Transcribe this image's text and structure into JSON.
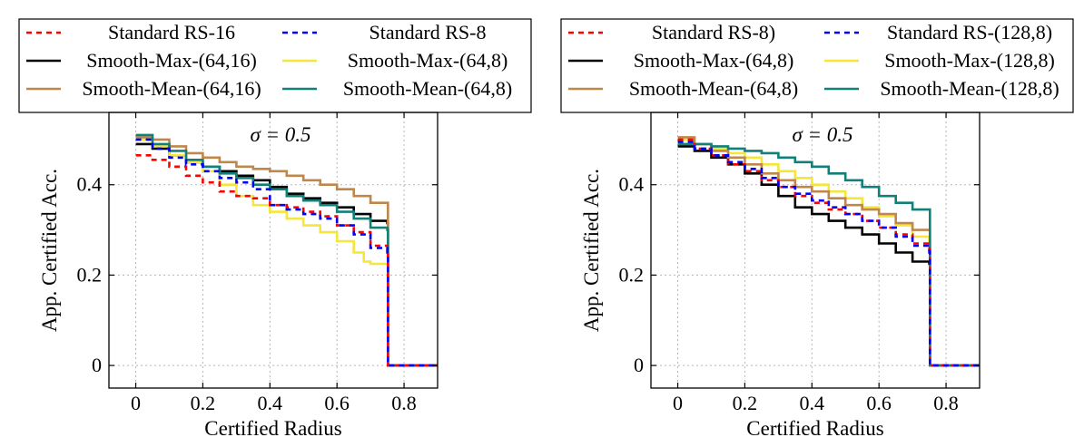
{
  "chart_data": [
    {
      "type": "line",
      "title": "",
      "annotation": "σ = 0.5",
      "xlabel": "Certified Radius",
      "ylabel": "App. Certified Acc.",
      "xlim": [
        -0.08,
        0.9
      ],
      "ylim": [
        -0.05,
        0.56
      ],
      "xticks": [
        0,
        0.2,
        0.4,
        0.6,
        0.8
      ],
      "xtick_labels": [
        "0",
        "0.2",
        "0.4",
        "0.6",
        "0.8"
      ],
      "yticks": [
        0,
        0.2,
        0.4
      ],
      "ytick_labels": [
        "0",
        "0.2",
        "0.4"
      ],
      "grid": true,
      "legend_position": "top",
      "series": [
        {
          "name": "Standard RS-16",
          "color": "#ff0000",
          "dash": "dashed",
          "x": [
            0,
            0.05,
            0.1,
            0.15,
            0.2,
            0.25,
            0.3,
            0.35,
            0.4,
            0.45,
            0.5,
            0.55,
            0.6,
            0.65,
            0.7,
            0.75,
            0.752,
            0.9
          ],
          "y": [
            0.465,
            0.455,
            0.44,
            0.42,
            0.405,
            0.385,
            0.375,
            0.37,
            0.355,
            0.35,
            0.34,
            0.33,
            0.31,
            0.295,
            0.265,
            0.255,
            0.0,
            0.0
          ]
        },
        {
          "name": "Standard RS-8",
          "color": "#0000ff",
          "dash": "dashed",
          "x": [
            0,
            0.05,
            0.1,
            0.15,
            0.2,
            0.25,
            0.3,
            0.35,
            0.4,
            0.45,
            0.5,
            0.55,
            0.6,
            0.65,
            0.7,
            0.75,
            0.752,
            0.9
          ],
          "y": [
            0.5,
            0.48,
            0.46,
            0.445,
            0.43,
            0.415,
            0.405,
            0.39,
            0.355,
            0.345,
            0.335,
            0.325,
            0.31,
            0.29,
            0.26,
            0.25,
            0.0,
            0.0
          ]
        },
        {
          "name": "Smooth-Max-(64,16)",
          "color": "#000000",
          "dash": "solid",
          "x": [
            0,
            0.05,
            0.1,
            0.15,
            0.2,
            0.25,
            0.3,
            0.35,
            0.4,
            0.45,
            0.5,
            0.55,
            0.6,
            0.65,
            0.7,
            0.75,
            0.752,
            0.9
          ],
          "y": [
            0.49,
            0.48,
            0.465,
            0.45,
            0.44,
            0.43,
            0.42,
            0.41,
            0.395,
            0.38,
            0.37,
            0.36,
            0.35,
            0.335,
            0.32,
            0.315,
            0.0,
            0.0
          ]
        },
        {
          "name": "Smooth-Max-(64,8)",
          "color": "#f5e63c",
          "dash": "solid",
          "x": [
            0,
            0.05,
            0.1,
            0.15,
            0.2,
            0.25,
            0.3,
            0.35,
            0.4,
            0.45,
            0.5,
            0.55,
            0.6,
            0.65,
            0.68,
            0.7,
            0.75,
            0.752,
            0.9
          ],
          "y": [
            0.5,
            0.485,
            0.465,
            0.45,
            0.43,
            0.4,
            0.375,
            0.355,
            0.34,
            0.325,
            0.31,
            0.295,
            0.275,
            0.25,
            0.23,
            0.225,
            0.225,
            0.0,
            0.0
          ]
        },
        {
          "name": "Smooth-Mean-(64,16)",
          "color": "#c0874a",
          "dash": "solid",
          "x": [
            0,
            0.05,
            0.1,
            0.15,
            0.2,
            0.25,
            0.3,
            0.35,
            0.4,
            0.45,
            0.5,
            0.55,
            0.6,
            0.65,
            0.7,
            0.75,
            0.752,
            0.9
          ],
          "y": [
            0.505,
            0.5,
            0.485,
            0.47,
            0.46,
            0.45,
            0.44,
            0.435,
            0.43,
            0.42,
            0.41,
            0.4,
            0.39,
            0.375,
            0.36,
            0.36,
            0.0,
            0.0
          ]
        },
        {
          "name": "Smooth-Mean-(64,8)",
          "color": "#12807a",
          "dash": "solid",
          "x": [
            0,
            0.05,
            0.1,
            0.15,
            0.2,
            0.25,
            0.3,
            0.35,
            0.4,
            0.45,
            0.5,
            0.55,
            0.6,
            0.65,
            0.7,
            0.75,
            0.752,
            0.9
          ],
          "y": [
            0.51,
            0.49,
            0.475,
            0.455,
            0.44,
            0.425,
            0.415,
            0.4,
            0.39,
            0.375,
            0.365,
            0.355,
            0.34,
            0.325,
            0.305,
            0.3,
            0.0,
            0.0
          ]
        }
      ]
    },
    {
      "type": "line",
      "title": "",
      "annotation": "σ = 0.5",
      "xlabel": "Certified Radius",
      "ylabel": "App. Certified Acc.",
      "xlim": [
        -0.08,
        0.9
      ],
      "ylim": [
        -0.05,
        0.56
      ],
      "xticks": [
        0,
        0.2,
        0.4,
        0.6,
        0.8
      ],
      "xtick_labels": [
        "0",
        "0.2",
        "0.4",
        "0.6",
        "0.8"
      ],
      "yticks": [
        0,
        0.2,
        0.4
      ],
      "ytick_labels": [
        "0",
        "0.2",
        "0.4"
      ],
      "grid": true,
      "legend_position": "top",
      "series": [
        {
          "name": "Standard RS-8)",
          "color": "#ff0000",
          "dash": "dashed",
          "x": [
            0,
            0.05,
            0.1,
            0.15,
            0.2,
            0.25,
            0.3,
            0.35,
            0.4,
            0.45,
            0.5,
            0.55,
            0.6,
            0.65,
            0.7,
            0.75,
            0.752,
            0.9
          ],
          "y": [
            0.5,
            0.48,
            0.465,
            0.445,
            0.43,
            0.41,
            0.395,
            0.375,
            0.36,
            0.345,
            0.335,
            0.32,
            0.305,
            0.29,
            0.27,
            0.255,
            0.0,
            0.0
          ]
        },
        {
          "name": "Standard RS-(128,8)",
          "color": "#0000ff",
          "dash": "dashed",
          "x": [
            0,
            0.05,
            0.1,
            0.15,
            0.2,
            0.25,
            0.3,
            0.35,
            0.4,
            0.45,
            0.5,
            0.55,
            0.6,
            0.65,
            0.7,
            0.75,
            0.752,
            0.9
          ],
          "y": [
            0.495,
            0.48,
            0.465,
            0.45,
            0.435,
            0.415,
            0.395,
            0.38,
            0.365,
            0.35,
            0.335,
            0.32,
            0.305,
            0.285,
            0.265,
            0.25,
            0.0,
            0.0
          ]
        },
        {
          "name": "Smooth-Max-(64,8)",
          "color": "#000000",
          "dash": "solid",
          "x": [
            0,
            0.05,
            0.1,
            0.15,
            0.2,
            0.25,
            0.3,
            0.35,
            0.4,
            0.45,
            0.5,
            0.55,
            0.6,
            0.65,
            0.7,
            0.75,
            0.752,
            0.9
          ],
          "y": [
            0.485,
            0.475,
            0.46,
            0.445,
            0.425,
            0.4,
            0.375,
            0.35,
            0.335,
            0.32,
            0.305,
            0.29,
            0.27,
            0.25,
            0.23,
            0.225,
            0.0,
            0.0
          ]
        },
        {
          "name": "Smooth-Max-(128,8)",
          "color": "#f5e63c",
          "dash": "solid",
          "x": [
            0,
            0.05,
            0.1,
            0.15,
            0.2,
            0.25,
            0.3,
            0.35,
            0.4,
            0.45,
            0.5,
            0.55,
            0.6,
            0.65,
            0.7,
            0.75,
            0.752,
            0.9
          ],
          "y": [
            0.5,
            0.49,
            0.48,
            0.47,
            0.46,
            0.445,
            0.43,
            0.415,
            0.4,
            0.385,
            0.37,
            0.35,
            0.33,
            0.31,
            0.285,
            0.275,
            0.0,
            0.0
          ]
        },
        {
          "name": "Smooth-Mean-(64,8)",
          "color": "#c0874a",
          "dash": "solid",
          "x": [
            0,
            0.05,
            0.1,
            0.15,
            0.2,
            0.25,
            0.3,
            0.35,
            0.4,
            0.45,
            0.5,
            0.55,
            0.6,
            0.65,
            0.7,
            0.75,
            0.752,
            0.9
          ],
          "y": [
            0.505,
            0.49,
            0.475,
            0.46,
            0.445,
            0.425,
            0.41,
            0.395,
            0.385,
            0.37,
            0.355,
            0.345,
            0.335,
            0.315,
            0.3,
            0.3,
            0.0,
            0.0
          ]
        },
        {
          "name": "Smooth-Mean-(128,8)",
          "color": "#12807a",
          "dash": "solid",
          "x": [
            0,
            0.05,
            0.1,
            0.15,
            0.2,
            0.25,
            0.3,
            0.35,
            0.4,
            0.45,
            0.5,
            0.55,
            0.6,
            0.65,
            0.7,
            0.75,
            0.752,
            0.9
          ],
          "y": [
            0.49,
            0.49,
            0.485,
            0.48,
            0.475,
            0.47,
            0.46,
            0.45,
            0.44,
            0.425,
            0.41,
            0.395,
            0.375,
            0.36,
            0.345,
            0.345,
            0.0,
            0.0
          ]
        }
      ]
    }
  ]
}
